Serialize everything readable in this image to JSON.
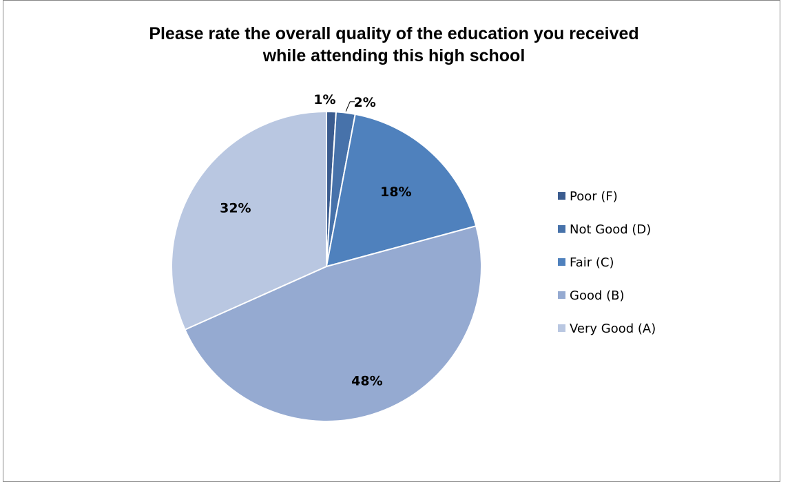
{
  "chart_data": {
    "type": "pie",
    "title": "Please rate the overall quality of the education you received while attending this high school",
    "title_lines": [
      "Please rate the overall quality of the education you received",
      "while attending this high school"
    ],
    "categories": [
      "Poor (F)",
      "Not Good (D)",
      "Fair (C)",
      "Good (B)",
      "Very Good (A)"
    ],
    "values": [
      1,
      2,
      18,
      48,
      32
    ],
    "labels": [
      "1%",
      "2%",
      "18%",
      "48%",
      "32%"
    ],
    "colors": [
      "#3B5C8F",
      "#4772AA",
      "#4F81BD",
      "#95AAD1",
      "#B9C7E1"
    ],
    "legend_position": "right",
    "start_angle_deg": 0,
    "direction": "clockwise"
  }
}
